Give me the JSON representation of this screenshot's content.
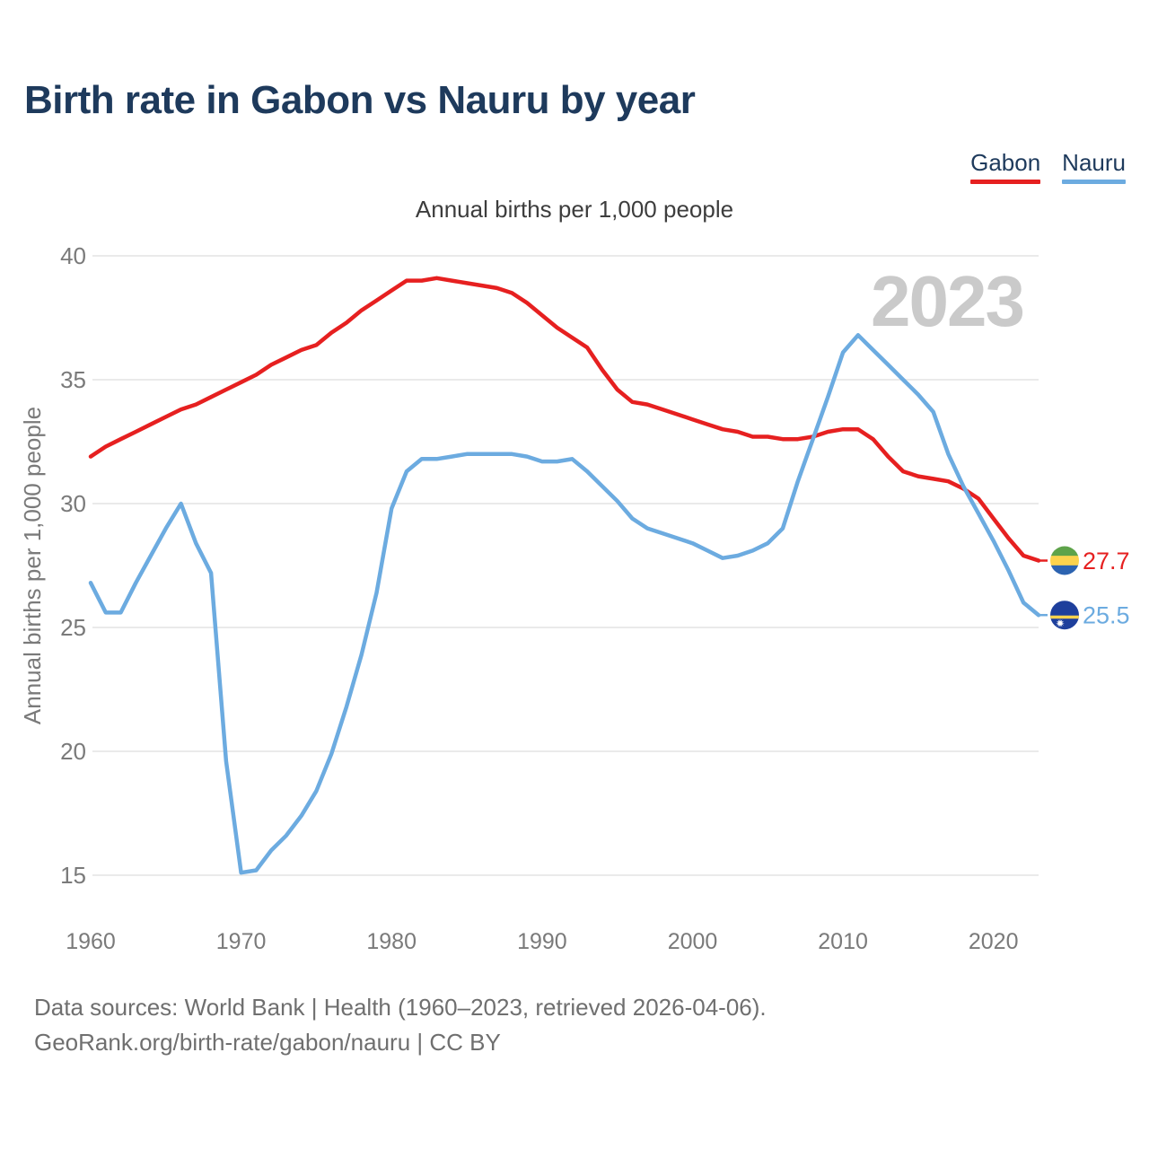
{
  "header": {
    "title": "Birth rate in Gabon vs Nauru by year"
  },
  "footer": {
    "line1": "Data sources: World Bank | Health (1960–2023, retrieved 2026-04-06).",
    "line2": "GeoRank.org/birth-rate/gabon/nauru | CC BY"
  },
  "chart_data": {
    "type": "line",
    "title": "Birth rate in Gabon vs Nauru by year",
    "subtitle": "Annual births per 1,000 people",
    "ylabel": "Annual births per 1,000 people",
    "watermark": "2023",
    "grid": true,
    "legend_position": "top-right",
    "x_range": [
      1960,
      2023
    ],
    "ylim": [
      13.2,
      41.5
    ],
    "y_ticks": [
      15,
      20,
      25,
      30,
      35,
      40
    ],
    "x_ticks": [
      1960,
      1970,
      1980,
      1990,
      2000,
      2010,
      2020
    ],
    "grid_color": "#eaeaea",
    "tick_color": "#7a7a7a",
    "years": [
      1960,
      1961,
      1962,
      1963,
      1964,
      1965,
      1966,
      1967,
      1968,
      1969,
      1970,
      1971,
      1972,
      1973,
      1974,
      1975,
      1976,
      1977,
      1978,
      1979,
      1980,
      1981,
      1982,
      1983,
      1984,
      1985,
      1986,
      1987,
      1988,
      1989,
      1990,
      1991,
      1992,
      1993,
      1994,
      1995,
      1996,
      1997,
      1998,
      1999,
      2000,
      2001,
      2002,
      2003,
      2004,
      2005,
      2006,
      2007,
      2008,
      2009,
      2010,
      2011,
      2012,
      2013,
      2014,
      2015,
      2016,
      2017,
      2018,
      2019,
      2020,
      2021,
      2022,
      2023
    ],
    "series": [
      {
        "name": "Gabon",
        "color": "#e62020",
        "end_label": "27.7",
        "flag": {
          "name": "gabon-flag",
          "colors": [
            "#5ea34a",
            "#fcd34d",
            "#2c63b0"
          ]
        },
        "values": [
          31.9,
          32.3,
          32.6,
          32.9,
          33.2,
          33.5,
          33.8,
          34.0,
          34.3,
          34.6,
          34.9,
          35.2,
          35.6,
          35.9,
          36.2,
          36.4,
          36.9,
          37.3,
          37.8,
          38.2,
          38.6,
          39.0,
          39.0,
          39.1,
          39.0,
          38.9,
          38.8,
          38.7,
          38.5,
          38.1,
          37.6,
          37.1,
          36.7,
          36.3,
          35.4,
          34.6,
          34.1,
          34.0,
          33.8,
          33.6,
          33.4,
          33.2,
          33.0,
          32.9,
          32.7,
          32.7,
          32.6,
          32.6,
          32.7,
          32.9,
          33.0,
          33.0,
          32.6,
          31.9,
          31.3,
          31.1,
          31.0,
          30.9,
          30.6,
          30.2,
          29.4,
          28.6,
          27.9,
          27.7
        ]
      },
      {
        "name": "Nauru",
        "color": "#6cabe0",
        "end_label": "25.5",
        "flag": {
          "name": "nauru-flag",
          "bg": "#1e3f9c",
          "stripe": "#fcd34d",
          "star": "#ffffff"
        },
        "values": [
          26.8,
          25.6,
          25.6,
          26.8,
          27.9,
          29.0,
          30.0,
          28.4,
          27.2,
          19.6,
          15.1,
          15.2,
          16.0,
          16.6,
          17.4,
          18.4,
          19.9,
          21.8,
          23.9,
          26.4,
          29.8,
          31.3,
          31.8,
          31.8,
          31.9,
          32.0,
          32.0,
          32.0,
          32.0,
          31.9,
          31.7,
          31.7,
          31.8,
          31.3,
          30.7,
          30.1,
          29.4,
          29.0,
          28.8,
          28.6,
          28.4,
          28.1,
          27.8,
          27.9,
          28.1,
          28.4,
          29.0,
          30.9,
          32.6,
          34.3,
          36.1,
          36.8,
          36.2,
          35.6,
          35.0,
          34.4,
          33.7,
          32.0,
          30.7,
          29.6,
          28.5,
          27.3,
          26.0,
          25.5
        ]
      }
    ]
  }
}
